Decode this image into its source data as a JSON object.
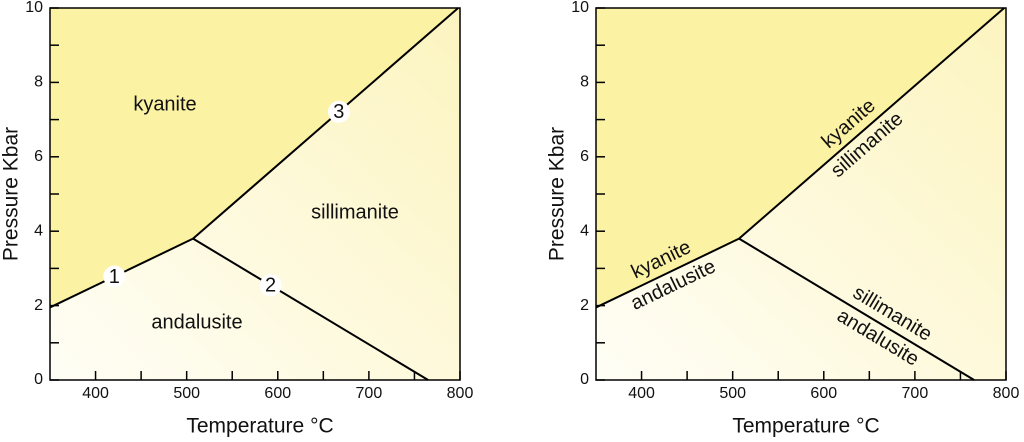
{
  "chart_data": [
    {
      "type": "line",
      "xlabel": "Temperature °C",
      "ylabel": "Pressure Kbar",
      "xlim": [
        350,
        800
      ],
      "ylim": [
        0,
        10
      ],
      "xticks": [
        400,
        500,
        600,
        700,
        800
      ],
      "yticks": [
        0,
        2,
        4,
        6,
        8,
        10
      ],
      "xminorticks": [
        450,
        550,
        650,
        750
      ],
      "yminorticks": [
        1,
        3,
        5,
        7,
        9
      ],
      "color": "#000000",
      "fill_color": "#fcf2a4",
      "regions": [
        "kyanite",
        "sillimanite",
        "andalusite"
      ],
      "series": [
        {
          "name": "1",
          "x": [
            350,
            507
          ],
          "values": [
            1.95,
            3.8
          ]
        },
        {
          "name": "2",
          "x": [
            507,
            765
          ],
          "values": [
            3.8,
            0
          ]
        },
        {
          "name": "3",
          "x": [
            507,
            798
          ],
          "values": [
            3.8,
            10
          ]
        }
      ]
    },
    {
      "type": "line",
      "xlabel": "Temperature °C",
      "ylabel": "Pressure Kbar",
      "xlim": [
        350,
        800
      ],
      "ylim": [
        0,
        10
      ],
      "xticks": [
        400,
        500,
        600,
        700,
        800
      ],
      "yticks": [
        0,
        2,
        4,
        6,
        8,
        10
      ],
      "xminorticks": [
        450,
        550,
        650,
        750
      ],
      "yminorticks": [
        1,
        3,
        5,
        7,
        9
      ],
      "color": "#000000",
      "fill_color": "#fcf2a4",
      "series": [
        {
          "x": [
            350,
            507
          ],
          "values": [
            1.95,
            3.8
          ],
          "labels": [
            "kyanite",
            "andalusite"
          ]
        },
        {
          "x": [
            507,
            765
          ],
          "values": [
            3.8,
            0
          ],
          "labels": [
            "sillimanite",
            "andalusite"
          ]
        },
        {
          "x": [
            507,
            798
          ],
          "values": [
            3.8,
            10
          ],
          "labels": [
            "kyanite",
            "sillimanite"
          ]
        }
      ]
    }
  ]
}
